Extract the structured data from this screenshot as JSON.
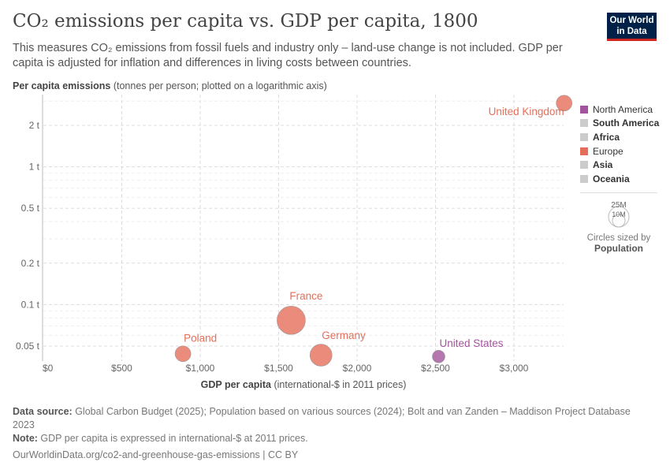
{
  "header": {
    "title": "CO₂ emissions per capita vs. GDP per capita, 1800",
    "subtitle": "This measures CO₂ emissions from fossil fuels and industry only – land-use change is not included. GDP per capita is adjusted for inflation and differences in living costs between countries.",
    "logo": "Our World in Data"
  },
  "chart_data": {
    "type": "scatter",
    "title": "CO₂ emissions per capita vs. GDP per capita, 1800",
    "ylabel_bold": "Per capita emissions",
    "ylabel_rest": " (tonnes per person; plotted on a logarithmic axis)",
    "xlabel_bold": "GDP per capita",
    "xlabel_rest": " (international-$ in 2011 prices)",
    "yscale": "log",
    "ylim": [
      0.038,
      3.2
    ],
    "xlim": [
      0,
      3350
    ],
    "xticks": [
      {
        "v": 0,
        "label": "$0"
      },
      {
        "v": 500,
        "label": "$500"
      },
      {
        "v": 1000,
        "label": "$1,000"
      },
      {
        "v": 1500,
        "label": "$1,500"
      },
      {
        "v": 2000,
        "label": "$2,000"
      },
      {
        "v": 2500,
        "label": "$2,500"
      },
      {
        "v": 3000,
        "label": "$3,000"
      }
    ],
    "yticks": [
      {
        "v": 2,
        "label": "2 t"
      },
      {
        "v": 1,
        "label": "1 t"
      },
      {
        "v": 0.5,
        "label": "0.5 t"
      },
      {
        "v": 0.2,
        "label": "0.2 t"
      },
      {
        "v": 0.1,
        "label": "0.1 t"
      },
      {
        "v": 0.05,
        "label": "0.05 t"
      }
    ],
    "grid": true,
    "points": [
      {
        "name": "United Kingdom",
        "x": 3320,
        "y": 2.9,
        "region": "Europe"
      },
      {
        "name": "France",
        "x": 1580,
        "y": 0.077,
        "region": "Europe"
      },
      {
        "name": "Germany",
        "x": 1770,
        "y": 0.043,
        "region": "Europe"
      },
      {
        "name": "Poland",
        "x": 890,
        "y": 0.044,
        "region": "Europe"
      },
      {
        "name": "United States",
        "x": 2520,
        "y": 0.042,
        "region": "North America"
      }
    ],
    "legend": {
      "placement": "right",
      "items": [
        {
          "label": "North America",
          "color": "#a2559c",
          "active": true
        },
        {
          "label": "South America",
          "color": "#cccccc",
          "active": false
        },
        {
          "label": "Africa",
          "color": "#cccccc",
          "active": false
        },
        {
          "label": "Europe",
          "color": "#e56e5a",
          "active": true
        },
        {
          "label": "Asia",
          "color": "#cccccc",
          "active": false
        },
        {
          "label": "Oceania",
          "color": "#cccccc",
          "active": false
        }
      ]
    },
    "size_legend": {
      "big": "25M",
      "small": "10M",
      "caption": "Circles sized by",
      "variable": "Population"
    }
  },
  "footer": {
    "source_label": "Data source:",
    "source": " Global Carbon Budget (2025); Population based on various sources (2024); Bolt and van Zanden – Maddison Project Database 2023",
    "note_label": "Note:",
    "note": " GDP per capita is expressed in international-$ at 2011 prices.",
    "url": "OurWorldinData.org/co2-and-greenhouse-gas-emissions | CC BY"
  }
}
